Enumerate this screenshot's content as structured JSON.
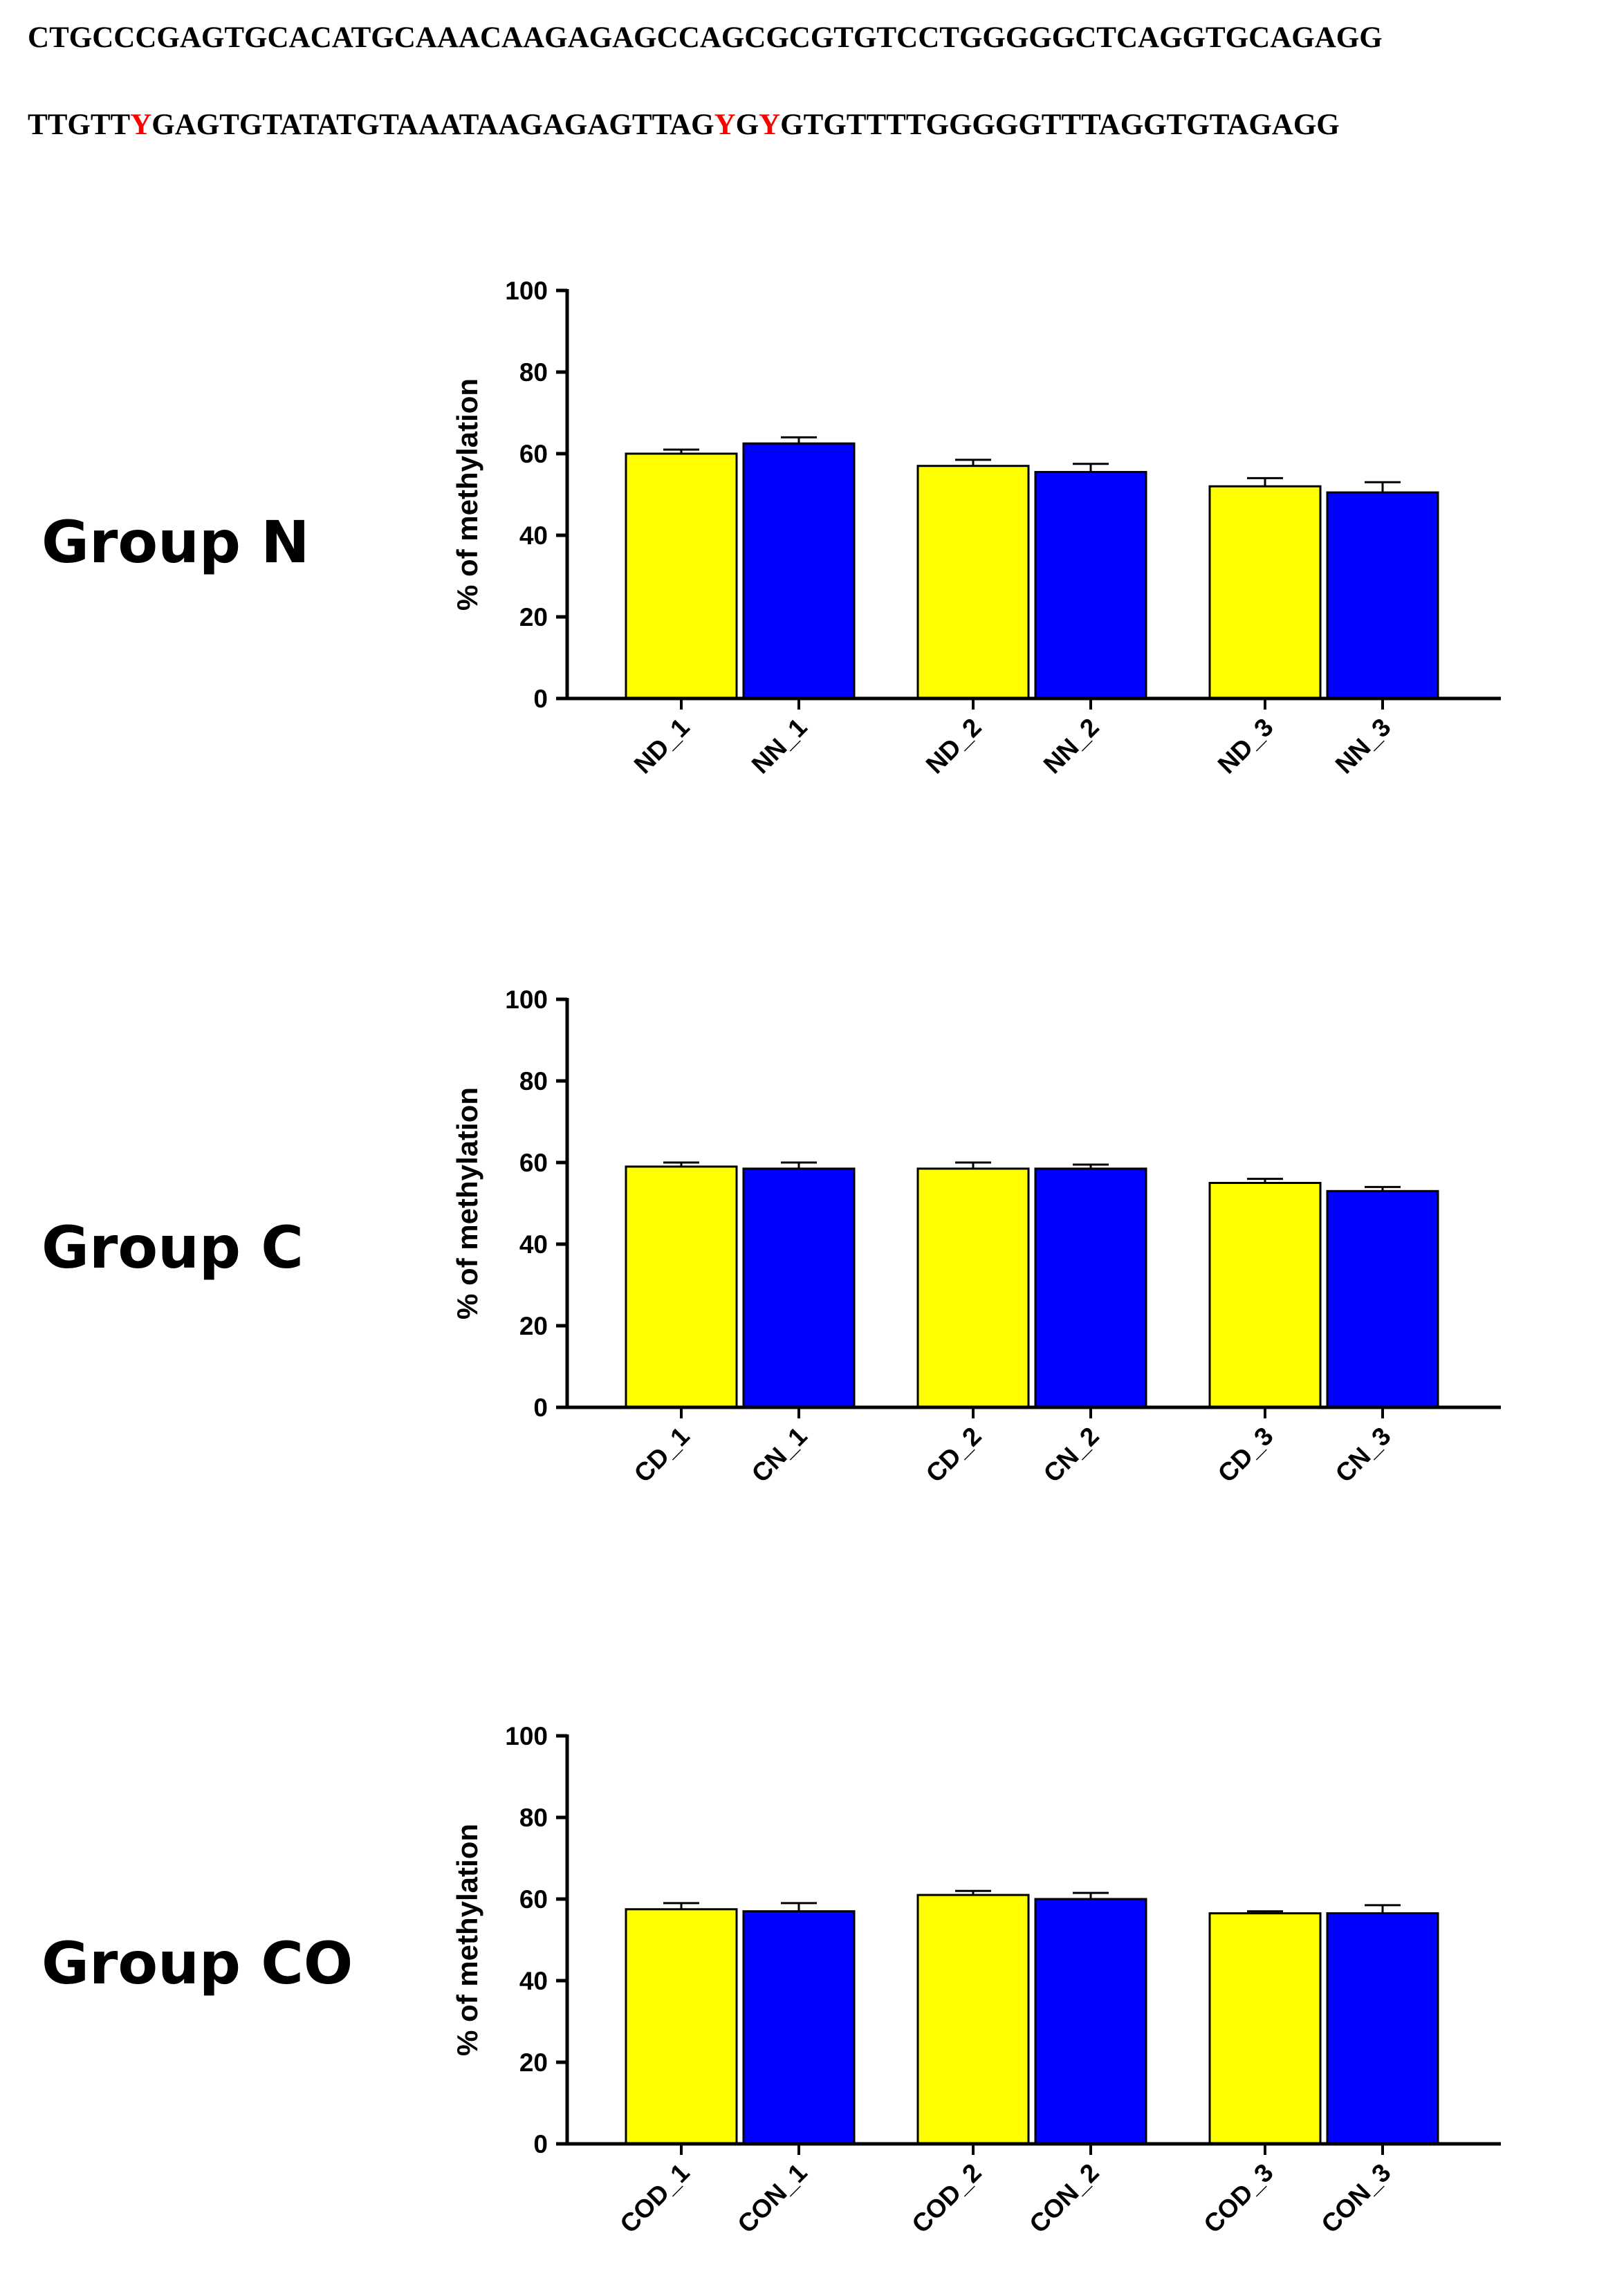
{
  "sequences": {
    "line1": "CTGCCCGAGTGCACATGCAAACAAGAGAGCCAGCGCGTGTCCTGGGGGCTCAGGTGCAGAGG",
    "line2": "TTGTTYGAGTGTATATGTAAATAAGAGAGTTAGYGYGTGTTTTGGGGGTTTAGGTGTAGAGG",
    "highlight_char": "Y",
    "highlight_color": "#ff0000"
  },
  "colors": {
    "yellow": "#ffff00",
    "blue": "#0000ff",
    "axis": "#000000"
  },
  "chart_data": [
    {
      "type": "bar",
      "title": "Group N",
      "ylabel": "% of methylation",
      "xlabel": "",
      "ylim": [
        0,
        100
      ],
      "yticks": [
        0,
        20,
        40,
        60,
        80,
        100
      ],
      "categories": [
        "ND_1",
        "NN_1",
        "ND_2",
        "NN_2",
        "ND_3",
        "NN_3"
      ],
      "values": [
        60,
        62.5,
        57,
        55.5,
        52,
        50.5
      ],
      "errors": [
        1,
        1.5,
        1.5,
        2,
        2,
        2.5
      ],
      "bar_colors": [
        "yellow",
        "blue",
        "yellow",
        "blue",
        "yellow",
        "blue"
      ]
    },
    {
      "type": "bar",
      "title": "Group C",
      "ylabel": "% of methylation",
      "xlabel": "",
      "ylim": [
        0,
        100
      ],
      "yticks": [
        0,
        20,
        40,
        60,
        80,
        100
      ],
      "categories": [
        "CD_1",
        "CN_1",
        "CD_2",
        "CN_2",
        "CD_3",
        "CN_3"
      ],
      "values": [
        59,
        58.5,
        58.5,
        58.5,
        55,
        53
      ],
      "errors": [
        1,
        1.5,
        1.5,
        1,
        1,
        1
      ],
      "bar_colors": [
        "yellow",
        "blue",
        "yellow",
        "blue",
        "yellow",
        "blue"
      ]
    },
    {
      "type": "bar",
      "title": "Group CO",
      "ylabel": "% of methylation",
      "xlabel": "",
      "ylim": [
        0,
        100
      ],
      "yticks": [
        0,
        20,
        40,
        60,
        80,
        100
      ],
      "categories": [
        "COD_1",
        "CON_1",
        "COD_2",
        "CON_2",
        "COD_3",
        "CON_3"
      ],
      "values": [
        57.5,
        57,
        61,
        60,
        56.5,
        56.5
      ],
      "errors": [
        1.5,
        2,
        1,
        1.5,
        0.5,
        2
      ],
      "bar_colors": [
        "yellow",
        "blue",
        "yellow",
        "blue",
        "yellow",
        "blue"
      ]
    }
  ]
}
